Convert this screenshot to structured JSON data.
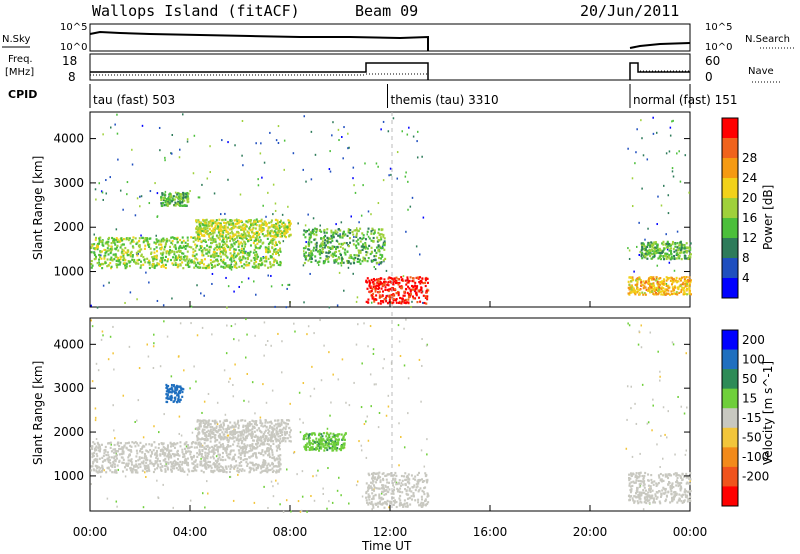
{
  "header": {
    "station": "Wallops Island (fitACF)",
    "beam": "Beam 09",
    "date": "20/Jun/2011"
  },
  "summary_labels": {
    "nsky": "N.Sky",
    "nsearch": "N.Search",
    "freq": "Freq.",
    "freq_unit": "[MHz]",
    "nave": "Nave",
    "cpid": "CPID",
    "pow_scale_top": "10^5",
    "pow_scale_bottom": "10^0",
    "freq_top": "18",
    "freq_bottom": "8",
    "nave_top": "60",
    "nave_bottom": "0"
  },
  "cpid_segments": [
    {
      "label": "tau (fast) 503",
      "start_h": 0.0,
      "end_h": 11.9
    },
    {
      "label": "themis (tau) 3310",
      "start_h": 11.9,
      "end_h": 21.6
    },
    {
      "label": "normal (fast) 151",
      "start_h": 21.6,
      "end_h": 24.0
    }
  ],
  "chart_data": [
    {
      "type": "heatmap",
      "name": "power-panel",
      "ylabel": "Slant Range [km]",
      "xlabel": "",
      "xlim": [
        0,
        24
      ],
      "ylim": [
        200,
        4600
      ],
      "yticks": [
        "1000",
        "2000",
        "3000",
        "4000"
      ],
      "colorbar": {
        "label": "Power [dB]",
        "ticks": [
          "4",
          "8",
          "12",
          "16",
          "20",
          "24",
          "28"
        ],
        "range": [
          0,
          30
        ],
        "colors": [
          "#0000ff",
          "#1f4fbf",
          "#2e7b5a",
          "#4bbf3a",
          "#9fd13a",
          "#f2d21a",
          "#f59a12",
          "#f0631c",
          "#ff0000"
        ]
      },
      "bands": [
        {
          "t0": 0.0,
          "t1": 7.6,
          "r0": 1100,
          "r1": 1800,
          "level": 14
        },
        {
          "t0": 2.8,
          "t1": 3.9,
          "r0": 2500,
          "r1": 2800,
          "level": 12
        },
        {
          "t0": 4.2,
          "t1": 8.0,
          "r0": 1800,
          "r1": 2200,
          "level": 16
        },
        {
          "t0": 8.5,
          "t1": 11.8,
          "r0": 1200,
          "r1": 2000,
          "level": 12
        },
        {
          "t0": 11.0,
          "t1": 13.5,
          "r0": 300,
          "r1": 900,
          "level": 28
        },
        {
          "t0": 21.5,
          "t1": 24.0,
          "r0": 500,
          "r1": 900,
          "level": 20
        },
        {
          "t0": 22.0,
          "t1": 24.0,
          "r0": 1300,
          "r1": 1700,
          "level": 12
        }
      ]
    },
    {
      "type": "heatmap",
      "name": "velocity-panel",
      "ylabel": "Slant Range [km]",
      "xlabel": "Time UT",
      "xlim": [
        0,
        24
      ],
      "ylim": [
        200,
        4600
      ],
      "yticks": [
        "1000",
        "2000",
        "3000",
        "4000"
      ],
      "xticks": [
        "00:00",
        "04:00",
        "08:00",
        "12:00",
        "16:00",
        "20:00",
        "00:00"
      ],
      "colorbar": {
        "label": "Velocity [m s^-1]",
        "ticks": [
          "200",
          "100",
          "50",
          "15",
          "-15",
          "-50",
          "-100",
          "-200"
        ],
        "colors": [
          "#0000ff",
          "#1f6fbf",
          "#2e8b57",
          "#6fcf3a",
          "#c8c8c0",
          "#f2c53a",
          "#f28a1a",
          "#f0531c",
          "#ff0000"
        ]
      },
      "bands": [
        {
          "t0": 0.0,
          "t1": 7.6,
          "r0": 1100,
          "r1": 1800,
          "level": 0
        },
        {
          "t0": 3.0,
          "t1": 3.7,
          "r0": 2700,
          "r1": 3100,
          "level": 180
        },
        {
          "t0": 4.2,
          "t1": 8.0,
          "r0": 1800,
          "r1": 2300,
          "level": 0
        },
        {
          "t0": 8.5,
          "t1": 10.2,
          "r0": 1600,
          "r1": 2000,
          "level": 40
        },
        {
          "t0": 11.0,
          "t1": 13.5,
          "r0": 300,
          "r1": 1100,
          "level": 0
        },
        {
          "t0": 21.5,
          "t1": 24.0,
          "r0": 400,
          "r1": 1100,
          "level": 0
        }
      ]
    }
  ]
}
